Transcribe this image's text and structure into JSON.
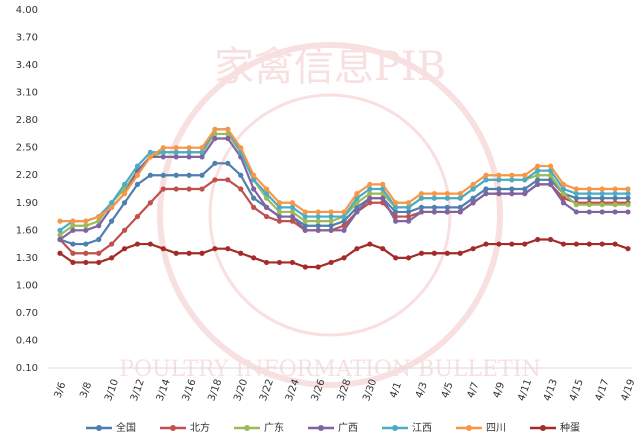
{
  "chart_data": {
    "type": "line",
    "watermark": {
      "top": "家禽信息PIB",
      "bottom": "POULTRY INFORMATION BULLETIN"
    },
    "categories": [
      "3/6",
      null,
      "3/8",
      null,
      "3/10",
      null,
      "3/12",
      null,
      "3/14",
      null,
      "3/16",
      null,
      "3/18",
      null,
      "3/20",
      null,
      "3/22",
      null,
      "3/24",
      null,
      "3/26",
      null,
      "3/28",
      null,
      "3/30",
      null,
      "4/1",
      null,
      "4/3",
      null,
      "4/5",
      null,
      "4/7",
      null,
      "4/9",
      null,
      "4/11",
      null,
      "4/13",
      null,
      "4/15",
      null,
      "4/17",
      null,
      "4/19"
    ],
    "ylim": [
      0.1,
      4.0
    ],
    "yticks": [
      {
        "value": 0.1,
        "label": "0.10"
      },
      {
        "value": 0.4,
        "label": "0.40"
      },
      {
        "value": 0.7,
        "label": "0.70"
      },
      {
        "value": 1.0,
        "label": "1.00"
      },
      {
        "value": 1.3,
        "label": "1.30"
      },
      {
        "value": 1.6,
        "label": "1.60"
      },
      {
        "value": 1.9,
        "label": "1.90"
      },
      {
        "value": 2.2,
        "label": "2.20"
      },
      {
        "value": 2.5,
        "label": "2.50"
      },
      {
        "value": 2.8,
        "label": "2.80"
      },
      {
        "value": 3.1,
        "label": "3.10"
      },
      {
        "value": 3.4,
        "label": "3.40"
      },
      {
        "value": 3.7,
        "label": "3.70"
      },
      {
        "value": 4.0,
        "label": "4.00"
      }
    ],
    "grid": false,
    "legend": "bottom",
    "series": [
      {
        "name": "全国",
        "color": "#4e7fb0",
        "values": [
          1.5,
          1.45,
          1.45,
          1.5,
          1.7,
          1.9,
          2.1,
          2.2,
          2.2,
          2.2,
          2.2,
          2.2,
          2.33,
          2.33,
          2.2,
          1.95,
          1.85,
          1.75,
          1.75,
          1.65,
          1.65,
          1.65,
          1.7,
          1.85,
          1.95,
          1.95,
          1.8,
          1.8,
          1.85,
          1.85,
          1.85,
          1.85,
          1.95,
          2.05,
          2.05,
          2.05,
          2.05,
          2.15,
          2.15,
          2.0,
          1.95,
          1.95,
          1.95,
          1.95,
          1.95
        ]
      },
      {
        "name": "北方",
        "color": "#c0504d",
        "values": [
          1.5,
          1.35,
          1.35,
          1.35,
          1.45,
          1.6,
          1.75,
          1.9,
          2.05,
          2.05,
          2.05,
          2.05,
          2.15,
          2.15,
          2.05,
          1.85,
          1.75,
          1.7,
          1.7,
          1.6,
          1.6,
          1.6,
          1.65,
          1.8,
          1.9,
          1.9,
          1.75,
          1.75,
          1.8,
          1.8,
          1.8,
          1.8,
          1.9,
          2.0,
          2.0,
          2.0,
          2.0,
          2.1,
          2.1,
          1.95,
          1.9,
          1.9,
          1.9,
          1.9,
          1.9
        ]
      },
      {
        "name": "广东",
        "color": "#9bbb59",
        "values": [
          1.55,
          1.65,
          1.65,
          1.7,
          1.9,
          2.05,
          2.25,
          2.4,
          2.45,
          2.45,
          2.45,
          2.45,
          2.65,
          2.65,
          2.45,
          2.15,
          1.95,
          1.8,
          1.8,
          1.7,
          1.7,
          1.7,
          1.75,
          1.9,
          2.0,
          2.0,
          1.85,
          1.85,
          1.95,
          1.95,
          1.95,
          1.95,
          2.05,
          2.15,
          2.15,
          2.15,
          2.15,
          2.2,
          2.2,
          2.0,
          1.88,
          1.88,
          1.88,
          1.88,
          1.88
        ]
      },
      {
        "name": "广西",
        "color": "#8064a2",
        "values": [
          1.5,
          1.6,
          1.6,
          1.65,
          1.85,
          2.0,
          2.25,
          2.4,
          2.4,
          2.4,
          2.4,
          2.4,
          2.6,
          2.6,
          2.4,
          2.05,
          1.85,
          1.75,
          1.75,
          1.6,
          1.6,
          1.6,
          1.6,
          1.8,
          1.95,
          1.95,
          1.7,
          1.7,
          1.8,
          1.8,
          1.8,
          1.8,
          1.9,
          2.0,
          2.0,
          2.0,
          2.0,
          2.1,
          2.1,
          1.9,
          1.8,
          1.8,
          1.8,
          1.8,
          1.8
        ]
      },
      {
        "name": "江西",
        "color": "#4bacc6",
        "values": [
          1.6,
          1.7,
          1.7,
          1.75,
          1.9,
          2.1,
          2.3,
          2.45,
          2.45,
          2.45,
          2.45,
          2.45,
          2.7,
          2.7,
          2.45,
          2.15,
          2.0,
          1.85,
          1.85,
          1.75,
          1.75,
          1.75,
          1.75,
          1.95,
          2.05,
          2.05,
          1.85,
          1.85,
          1.95,
          1.95,
          1.95,
          1.95,
          2.05,
          2.15,
          2.15,
          2.15,
          2.15,
          2.25,
          2.25,
          2.05,
          2.0,
          2.0,
          2.0,
          2.0,
          2.0
        ]
      },
      {
        "name": "四川",
        "color": "#f79646",
        "values": [
          1.7,
          1.7,
          1.7,
          1.75,
          1.85,
          2.0,
          2.2,
          2.4,
          2.5,
          2.5,
          2.5,
          2.5,
          2.7,
          2.7,
          2.5,
          2.2,
          2.05,
          1.9,
          1.9,
          1.8,
          1.8,
          1.8,
          1.8,
          2.0,
          2.1,
          2.1,
          1.9,
          1.9,
          2.0,
          2.0,
          2.0,
          2.0,
          2.1,
          2.2,
          2.2,
          2.2,
          2.2,
          2.3,
          2.3,
          2.1,
          2.05,
          2.05,
          2.05,
          2.05,
          2.05
        ]
      },
      {
        "name": "种蛋",
        "color": "#a52a2a",
        "values": [
          1.35,
          1.25,
          1.25,
          1.25,
          1.3,
          1.4,
          1.45,
          1.45,
          1.4,
          1.35,
          1.35,
          1.35,
          1.4,
          1.4,
          1.35,
          1.3,
          1.25,
          1.25,
          1.25,
          1.2,
          1.2,
          1.25,
          1.3,
          1.4,
          1.45,
          1.4,
          1.3,
          1.3,
          1.35,
          1.35,
          1.35,
          1.35,
          1.4,
          1.45,
          1.45,
          1.45,
          1.45,
          1.5,
          1.5,
          1.45,
          1.45,
          1.45,
          1.45,
          1.45,
          1.4
        ]
      }
    ]
  }
}
